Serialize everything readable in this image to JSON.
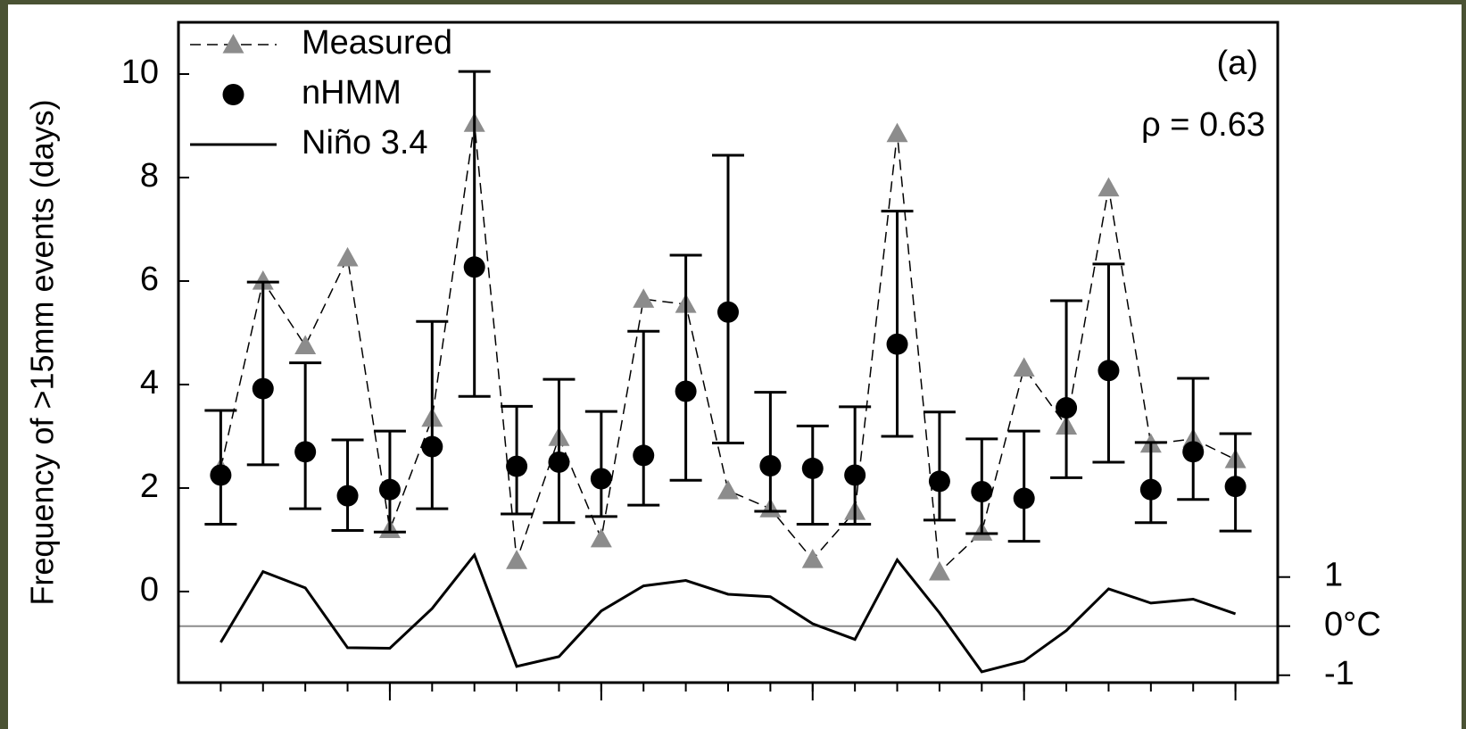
{
  "chart_data": {
    "type": "line",
    "y_label": "Frequency of >15mm events (days)",
    "annotations": [
      "(a)",
      "ρ = 0.63"
    ],
    "x": [
      1,
      2,
      3,
      4,
      5,
      6,
      7,
      8,
      9,
      10,
      11,
      12,
      13,
      14,
      15,
      16,
      17,
      18,
      19,
      20,
      21,
      22,
      23,
      24,
      25
    ],
    "xlim": [
      0,
      26
    ],
    "xticks": [
      5,
      10,
      15,
      20,
      25
    ],
    "ylim": [
      -1.76,
      11
    ],
    "yticks": [
      0,
      2,
      4,
      6,
      8,
      10
    ],
    "y2lim": [
      -1.15,
      12.3
    ],
    "y2ticks": [
      -1,
      {
        "value": 0,
        "label": "0°C"
      },
      1
    ],
    "reference_line": {
      "axis": "y2",
      "value": 0,
      "color": "#8c8c8c"
    },
    "legend": "top-left",
    "series": [
      {
        "name": "Measured",
        "color": "#8c8c8c",
        "style": "dashed",
        "marker": "triangle",
        "values": [
          2.38,
          6.0,
          4.75,
          6.45,
          1.2,
          3.35,
          9.05,
          0.6,
          2.98,
          1.02,
          5.65,
          5.55,
          1.95,
          1.6,
          0.62,
          1.55,
          8.85,
          0.38,
          1.15,
          4.32,
          3.2,
          7.8,
          2.85,
          2.95,
          2.55
        ]
      },
      {
        "name": "nHMM",
        "color": "#000000",
        "style": "none",
        "marker": "circle",
        "values": [
          2.25,
          3.92,
          2.7,
          1.85,
          1.97,
          2.8,
          6.27,
          2.42,
          2.5,
          2.18,
          2.63,
          3.87,
          5.4,
          2.43,
          2.38,
          2.25,
          4.78,
          2.13,
          1.93,
          1.8,
          3.55,
          4.27,
          1.97,
          2.7,
          2.03
        ],
        "lower": [
          1.3,
          2.45,
          1.6,
          1.18,
          1.15,
          1.6,
          3.77,
          1.5,
          1.33,
          1.45,
          1.67,
          2.15,
          2.87,
          1.55,
          1.3,
          1.3,
          3.0,
          1.38,
          1.12,
          0.97,
          2.2,
          2.5,
          1.33,
          1.78,
          1.17
        ],
        "upper": [
          3.5,
          5.98,
          4.42,
          2.93,
          3.1,
          5.22,
          10.05,
          3.58,
          4.1,
          3.48,
          5.03,
          6.5,
          8.43,
          3.85,
          3.2,
          3.57,
          7.35,
          3.47,
          2.95,
          3.1,
          5.62,
          6.33,
          2.88,
          4.12,
          3.05
        ]
      },
      {
        "name": "Niño 3.4",
        "color": "#000000",
        "style": "solid",
        "marker": "none",
        "axis": "y2",
        "values": [
          -0.33,
          1.11,
          0.78,
          -0.44,
          -0.45,
          0.36,
          1.45,
          -0.82,
          -0.62,
          0.31,
          0.82,
          0.93,
          0.65,
          0.6,
          0.05,
          -0.27,
          1.35,
          0.27,
          -0.93,
          -0.71,
          -0.09,
          0.76,
          0.47,
          0.55,
          0.25
        ]
      }
    ]
  }
}
